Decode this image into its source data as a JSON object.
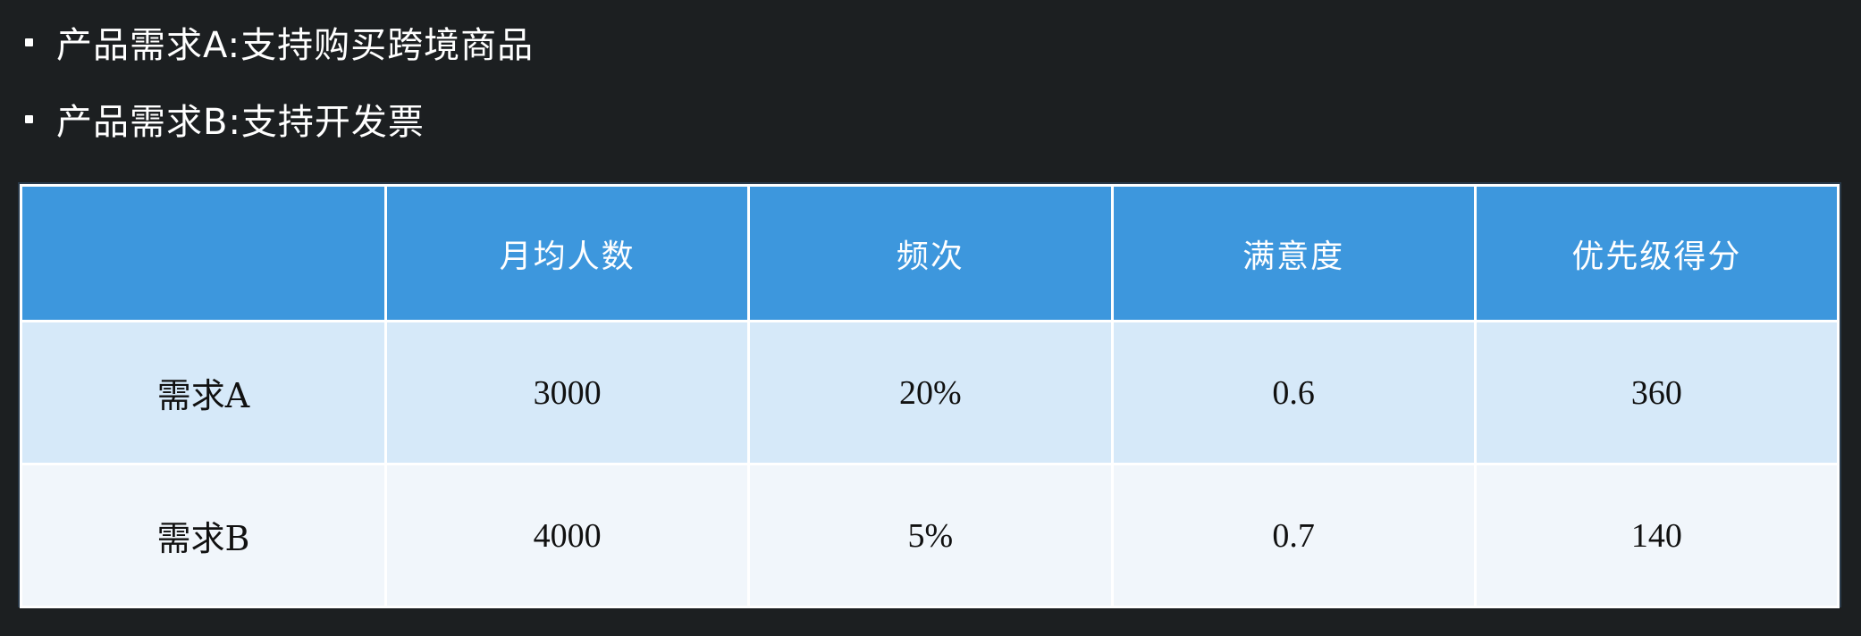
{
  "bullets": [
    "产品需求A:支持购买跨境商品",
    "产品需求B:支持开发票"
  ],
  "table": {
    "headers": [
      "",
      "月均人数",
      "频次",
      "满意度",
      "优先级得分"
    ],
    "rows": [
      [
        "需求A",
        "3000",
        "20%",
        "0.6",
        "360"
      ],
      [
        "需求B",
        "4000",
        "5%",
        "0.7",
        "140"
      ]
    ]
  },
  "colors": {
    "background": "#1c1f21",
    "header": "#3d97dd",
    "row_a": "#d6e9f9",
    "row_b": "#f1f6fb"
  }
}
